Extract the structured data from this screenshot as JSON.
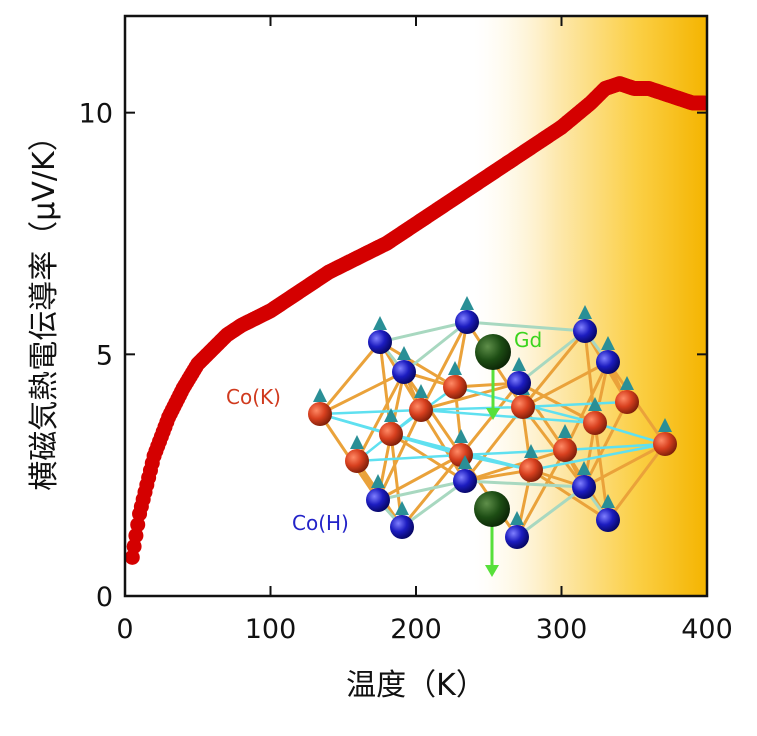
{
  "chart_data": {
    "type": "scatter",
    "title": "",
    "xlabel": "温度（K）",
    "ylabel": "横磁気熱電伝導率（μV/K）",
    "xlim": [
      0,
      400
    ],
    "ylim": [
      0,
      12
    ],
    "xticks": [
      0,
      100,
      200,
      300,
      400
    ],
    "yticks": [
      0,
      5,
      10
    ],
    "grid": false,
    "shaded_region": {
      "x_from": 240,
      "x_to": 400,
      "gradient": "white-to-gold"
    },
    "series": [
      {
        "marker_color": "#d40000",
        "x": [
          5,
          10,
          15,
          20,
          25,
          30,
          40,
          50,
          60,
          70,
          80,
          100,
          120,
          140,
          160,
          180,
          200,
          220,
          240,
          260,
          280,
          300,
          320,
          330,
          340,
          350,
          360,
          370,
          380,
          390,
          398
        ],
        "y": [
          0.8,
          1.7,
          2.3,
          2.9,
          3.3,
          3.7,
          4.3,
          4.8,
          5.1,
          5.4,
          5.6,
          5.9,
          6.3,
          6.7,
          7.0,
          7.3,
          7.7,
          8.1,
          8.5,
          8.9,
          9.3,
          9.7,
          10.2,
          10.5,
          10.6,
          10.5,
          10.5,
          10.4,
          10.3,
          10.2,
          10.2
        ]
      }
    ],
    "annotations": [
      {
        "text": "Gd",
        "color": "#3cd41e"
      },
      {
        "text": "Co(K)",
        "color": "#d03a1e"
      },
      {
        "text": "Co(H)",
        "color": "#2323c8"
      }
    ]
  }
}
